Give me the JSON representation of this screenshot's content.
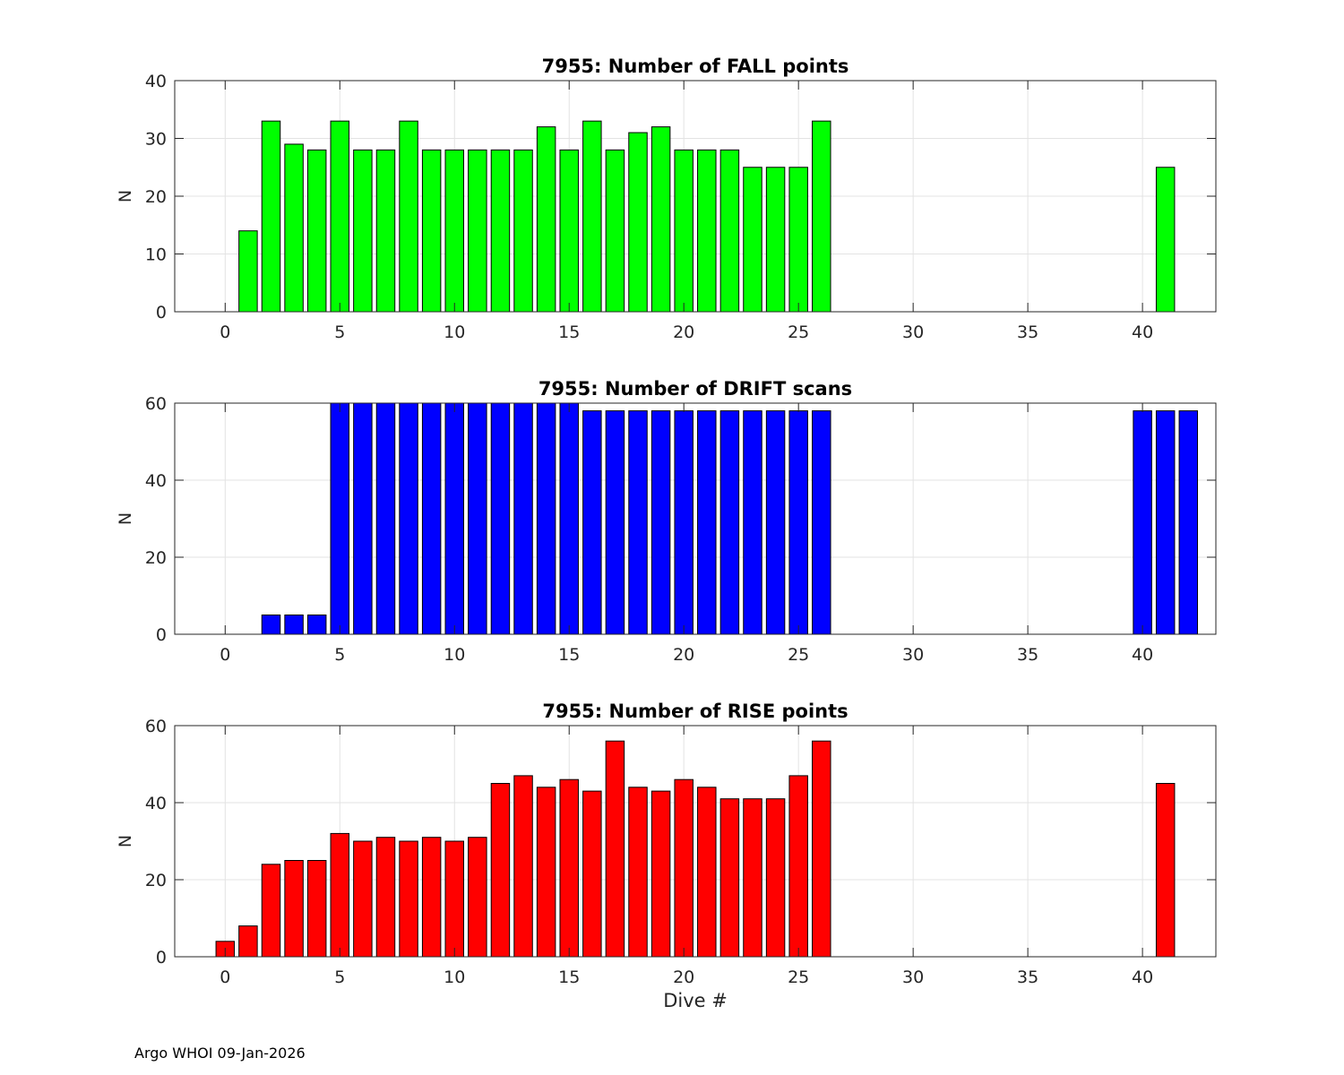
{
  "footer": "Argo WHOI 09-Jan-2026",
  "chart_data": [
    {
      "type": "bar",
      "title": "7955: Number of FALL points",
      "xlabel": "",
      "ylabel": "N",
      "xlim": [
        -2.2,
        43.2
      ],
      "ylim": [
        0,
        40
      ],
      "xticks": [
        0,
        5,
        10,
        15,
        20,
        25,
        30,
        35,
        40
      ],
      "yticks": [
        0,
        10,
        20,
        30,
        40
      ],
      "grid": true,
      "color": "#00ff00",
      "x": [
        1,
        2,
        3,
        4,
        5,
        6,
        7,
        8,
        9,
        10,
        11,
        12,
        13,
        14,
        15,
        16,
        17,
        18,
        19,
        20,
        21,
        22,
        23,
        24,
        25,
        26,
        41
      ],
      "values": [
        14,
        33,
        29,
        28,
        33,
        28,
        28,
        33,
        28,
        28,
        28,
        28,
        28,
        32,
        28,
        33,
        28,
        31,
        32,
        28,
        28,
        28,
        25,
        25,
        25,
        33,
        25
      ]
    },
    {
      "type": "bar",
      "title": "7955: Number of DRIFT scans",
      "xlabel": "",
      "ylabel": "N",
      "xlim": [
        -2.2,
        43.2
      ],
      "ylim": [
        0,
        60
      ],
      "xticks": [
        0,
        5,
        10,
        15,
        20,
        25,
        30,
        35,
        40
      ],
      "yticks": [
        0,
        20,
        40,
        60
      ],
      "grid": true,
      "color": "#0000ff",
      "x": [
        -1,
        0,
        1,
        2,
        3,
        4,
        5,
        6,
        7,
        8,
        9,
        10,
        11,
        12,
        13,
        14,
        15,
        16,
        17,
        18,
        19,
        20,
        21,
        22,
        23,
        24,
        25,
        26,
        40,
        41,
        42
      ],
      "values": [
        0,
        0,
        0,
        5,
        5,
        5,
        61,
        61,
        61,
        61,
        61,
        61,
        61,
        61,
        61,
        61,
        61,
        58,
        58,
        58,
        58,
        58,
        58,
        58,
        58,
        58,
        58,
        58,
        58,
        58,
        58
      ]
    },
    {
      "type": "bar",
      "title": "7955: Number of RISE points",
      "xlabel": "Dive #",
      "ylabel": "N",
      "xlim": [
        -2.2,
        43.2
      ],
      "ylim": [
        0,
        60
      ],
      "xticks": [
        0,
        5,
        10,
        15,
        20,
        25,
        30,
        35,
        40
      ],
      "yticks": [
        0,
        20,
        40,
        60
      ],
      "grid": true,
      "color": "#ff0000",
      "x": [
        0,
        1,
        2,
        3,
        4,
        5,
        6,
        7,
        8,
        9,
        10,
        11,
        12,
        13,
        14,
        15,
        16,
        17,
        18,
        19,
        20,
        21,
        22,
        23,
        24,
        25,
        26,
        41
      ],
      "values": [
        4,
        8,
        24,
        25,
        25,
        32,
        30,
        31,
        30,
        31,
        30,
        31,
        45,
        47,
        44,
        46,
        43,
        56,
        44,
        43,
        46,
        44,
        41,
        41,
        41,
        47,
        56,
        45
      ]
    }
  ]
}
